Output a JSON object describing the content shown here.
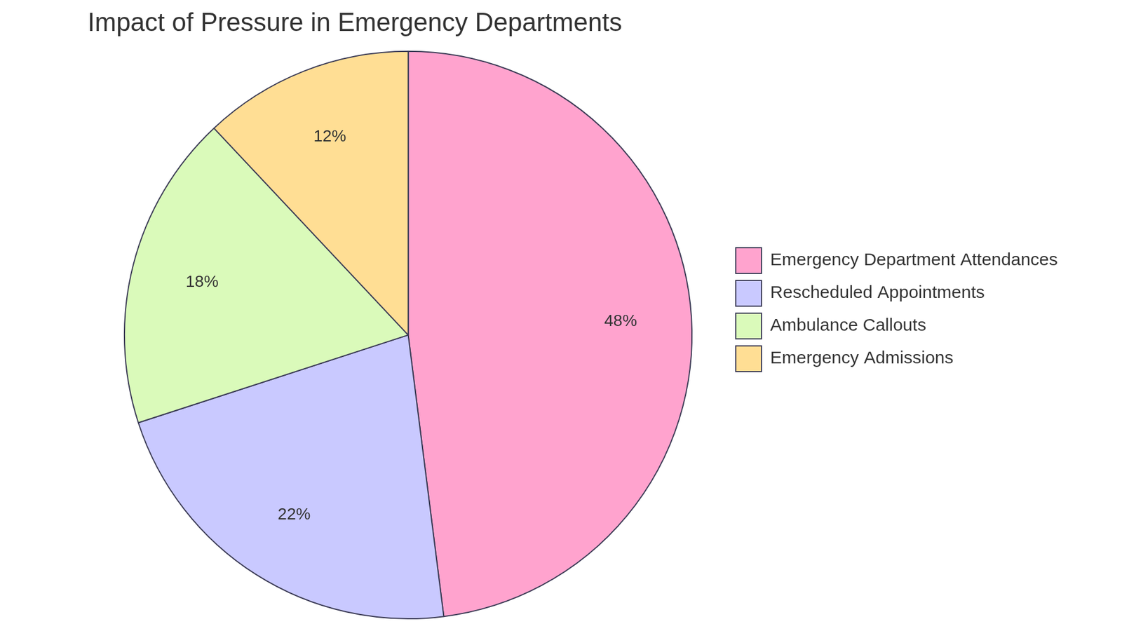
{
  "chart_data": {
    "type": "pie",
    "title": "Impact of Pressure in Emergency Departments",
    "categories": [
      "Emergency Department Attendances",
      "Rescheduled Appointments",
      "Ambulance Callouts",
      "Emergency Admissions"
    ],
    "values": [
      48,
      22,
      18,
      12
    ],
    "value_labels": [
      "48%",
      "22%",
      "18%",
      "12%"
    ],
    "colors": [
      "#ffa3ce",
      "#c9c9ff",
      "#dafaba",
      "#ffde94"
    ],
    "data_labels": true,
    "legend": "right"
  }
}
